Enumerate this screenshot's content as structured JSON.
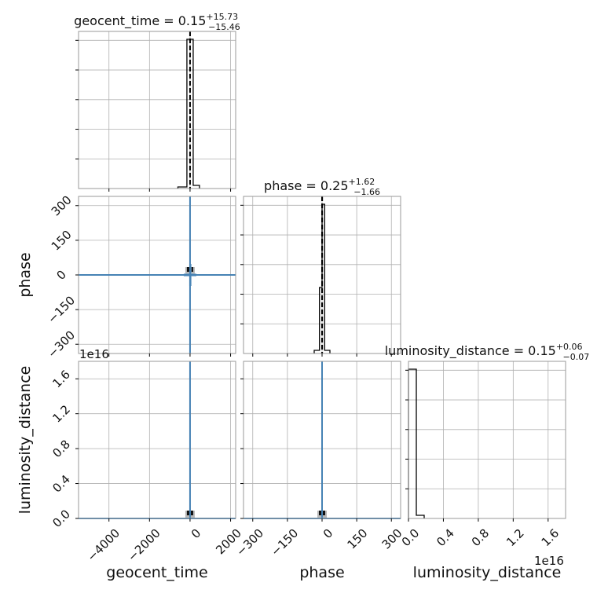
{
  "chart_data": {
    "type": "corner",
    "parameters": [
      "geocent_time",
      "phase",
      "luminosity_distance"
    ],
    "axis_labels": {
      "geocent_time": "geocent_time",
      "phase": "phase",
      "luminosity_distance": "luminosity_distance"
    },
    "titles": [
      {
        "param": "geocent_time",
        "prefix": "geocent_time = 0.15",
        "plus": "+15.73",
        "minus": "−15.46"
      },
      {
        "param": "phase",
        "prefix": "phase = 0.25",
        "plus": "+1.62",
        "minus": "−1.66"
      },
      {
        "param": "luminosity_distance",
        "prefix": "luminosity_distance = 0.15",
        "plus": "+0.06",
        "minus": "−0.07"
      }
    ],
    "ranges": {
      "geocent_time": [
        -5500,
        2250
      ],
      "phase": [
        -340,
        340
      ],
      "luminosity_distance": [
        0,
        1.8
      ]
    },
    "ticks": {
      "geocent_time": {
        "values": [
          -4000,
          -2000,
          0,
          2000
        ],
        "labels": [
          "−4000",
          "−2000",
          "0",
          "2000"
        ]
      },
      "phase": {
        "values": [
          -300,
          -150,
          0,
          150,
          300
        ],
        "labels": [
          "−300",
          "−150",
          "0",
          "150",
          "300"
        ]
      },
      "luminosity_distance": {
        "values": [
          0.0,
          0.4,
          0.8,
          1.2,
          1.6
        ],
        "labels": [
          "0.0",
          "0.4",
          "0.8",
          "1.2",
          "1.6"
        ]
      }
    },
    "offset_label": "1e16",
    "truths": {
      "geocent_time": 0,
      "phase": 0,
      "luminosity_distance": 0
    },
    "quantiles": {
      "geocent_time": [
        -15.31,
        0.15,
        15.88
      ],
      "phase": [
        -1.41,
        0.25,
        1.87
      ],
      "luminosity_distance": [
        0.08,
        0.15,
        0.21
      ]
    },
    "histograms": {
      "geocent_time": {
        "edges": [
          -600,
          -155,
          155,
          465
        ],
        "counts": [
          0.01,
          0.95,
          0.02
        ]
      },
      "phase": {
        "edges": [
          -34,
          -11.3,
          0,
          11.3,
          34
        ],
        "counts": [
          0.02,
          0.42,
          0.95,
          0.02
        ]
      },
      "luminosity_distance": {
        "edges": [
          0,
          0.09,
          0.18
        ],
        "counts": [
          0.95,
          0.02
        ]
      }
    },
    "grid": true
  }
}
